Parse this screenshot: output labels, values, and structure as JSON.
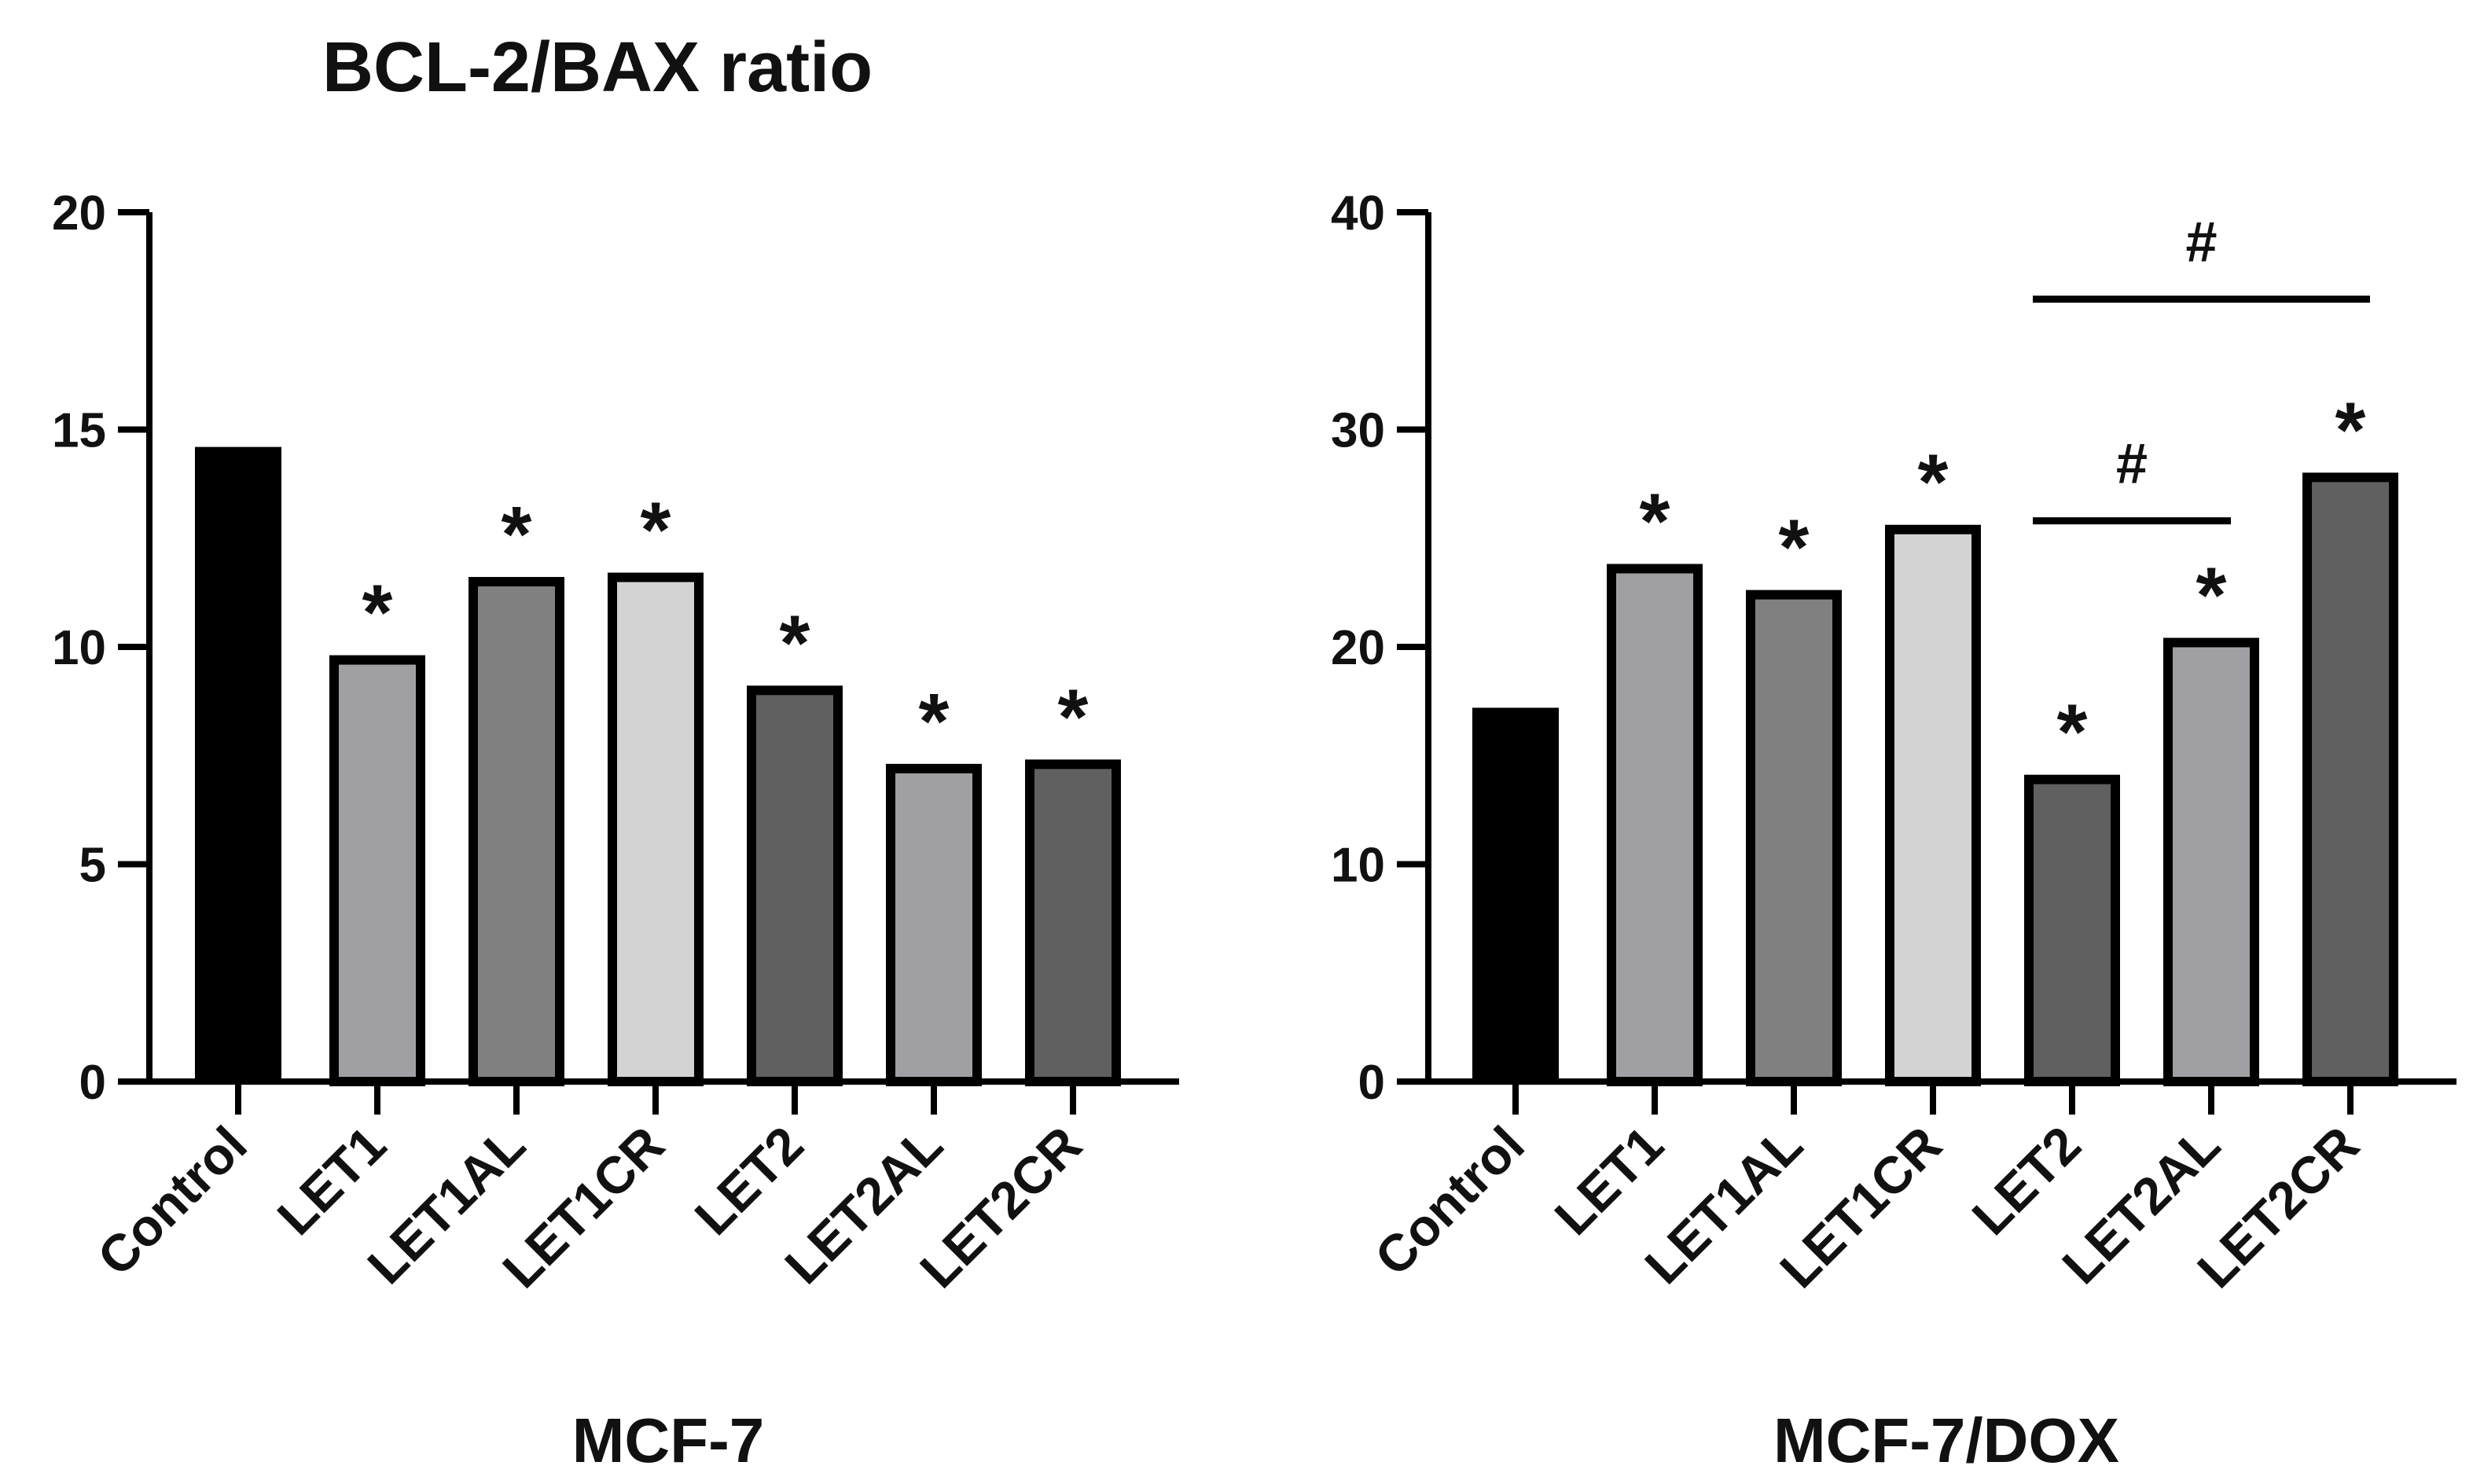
{
  "title": "BCL-2/BAX ratio",
  "chart_data": [
    {
      "type": "bar",
      "xlabel": "MCF-7",
      "ylabel": "",
      "ylim": [
        0,
        20
      ],
      "yticks": [
        0,
        5,
        10,
        15,
        20
      ],
      "categories": [
        "Control",
        "LET1",
        "LET1AL",
        "LET1CR",
        "LET2",
        "LET2AL",
        "LET2CR"
      ],
      "values": [
        14.6,
        9.7,
        11.5,
        11.6,
        9.0,
        7.2,
        7.3
      ],
      "colors": [
        "#000000",
        "#a0a0a4",
        "#808080",
        "#d3d3d3",
        "#606060",
        "#a0a0a4",
        "#606060"
      ],
      "annotations": [
        "",
        "*",
        "*",
        "*",
        "*",
        "*",
        "*"
      ],
      "brackets": []
    },
    {
      "type": "bar",
      "xlabel": "MCF-7/DOX",
      "ylabel": "",
      "ylim": [
        0,
        40
      ],
      "yticks": [
        0,
        10,
        20,
        30,
        40
      ],
      "categories": [
        "Control",
        "LET1",
        "LET1AL",
        "LET1CR",
        "LET2",
        "LET2AL",
        "LET2CR"
      ],
      "values": [
        17.2,
        23.6,
        22.4,
        25.4,
        13.9,
        20.2,
        27.8
      ],
      "colors": [
        "#000000",
        "#a0a0a4",
        "#808080",
        "#d3d3d3",
        "#606060",
        "#a0a0a4",
        "#606060"
      ],
      "annotations": [
        "",
        "*",
        "*",
        "*",
        "*",
        "*",
        "*"
      ],
      "brackets": [
        {
          "from": 4,
          "to": 5,
          "y": 25.8,
          "label": "#"
        },
        {
          "from": 4,
          "to": 6,
          "y": 36.0,
          "label": "#"
        }
      ]
    }
  ]
}
